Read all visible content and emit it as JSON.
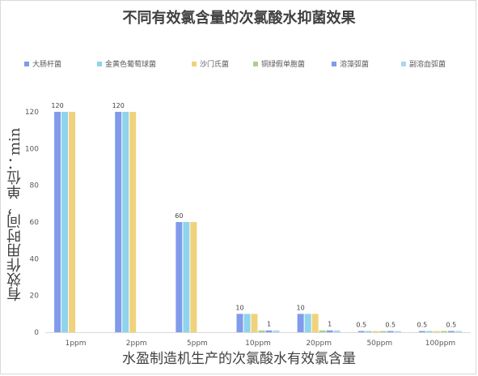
{
  "chart_data": {
    "type": "bar",
    "title": "不同有效氯含量的次氯酸水抑菌效果",
    "xlabel": "水盈制造机生产的次氯酸水有效氯含量",
    "ylabel": "有效作用时间，单位：min",
    "categories": [
      "1ppm",
      "2ppm",
      "5ppm",
      "10ppm",
      "20ppm",
      "50ppm",
      "100ppm"
    ],
    "ylim": [
      0,
      120
    ],
    "yticks": [
      "0",
      "20",
      "40",
      "60",
      "80",
      "100",
      "120"
    ],
    "grid": false,
    "legend_position": "top",
    "series": [
      {
        "name": "大肠杆菌",
        "color": "#7f9bea",
        "values": [
          120,
          120,
          60,
          10,
          10,
          0.5,
          0.5
        ],
        "labels": [
          "120",
          "120",
          "60",
          "10",
          "10",
          "0.5",
          "0.5"
        ]
      },
      {
        "name": "金黄色葡萄球菌",
        "color": "#8fd3ec",
        "values": [
          120,
          120,
          60,
          10,
          10,
          0.5,
          0.5
        ],
        "labels": [
          "",
          "",
          "",
          "",
          "",
          "",
          ""
        ]
      },
      {
        "name": "沙门氏菌",
        "color": "#f1d27c",
        "values": [
          120,
          120,
          60,
          10,
          10,
          0.5,
          0.5
        ],
        "labels": [
          "",
          "",
          "",
          "",
          "",
          "",
          ""
        ]
      },
      {
        "name": "铜绿假单胞菌",
        "color": "#a9d08e",
        "values": [
          0,
          0,
          0,
          1,
          1,
          0.5,
          0.5
        ],
        "labels": [
          "",
          "",
          "",
          "",
          "",
          "",
          ""
        ]
      },
      {
        "name": "溶藻弧菌",
        "color": "#7f9bea",
        "values": [
          0,
          0,
          0,
          1,
          1,
          0.5,
          0.5
        ],
        "labels": [
          "",
          "",
          "",
          "1",
          "1",
          "0.5",
          "0.5"
        ]
      },
      {
        "name": "副溶血弧菌",
        "color": "#a8d8f0",
        "values": [
          0,
          0,
          0,
          1,
          1,
          0.5,
          0.5
        ],
        "labels": [
          "",
          "",
          "",
          "",
          "",
          "",
          ""
        ]
      }
    ]
  }
}
